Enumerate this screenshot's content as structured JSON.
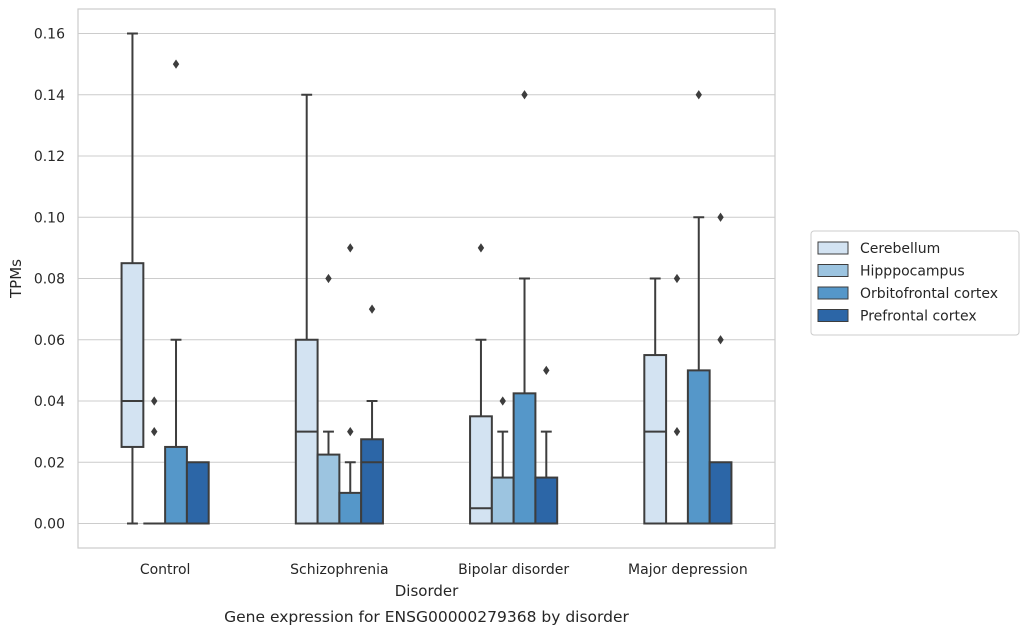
{
  "chart_data": {
    "type": "box",
    "caption": "Gene expression for ENSG00000279368 by disorder",
    "xlabel": "Disorder",
    "ylabel": "TPMs",
    "ylim": [
      -0.008,
      0.168
    ],
    "yticks": [
      "0.00",
      "0.02",
      "0.04",
      "0.06",
      "0.08",
      "0.10",
      "0.12",
      "0.14",
      "0.16"
    ],
    "ytick_values": [
      0,
      0.02,
      0.04,
      0.06,
      0.08,
      0.1,
      0.12,
      0.14,
      0.16
    ],
    "grid": "horizontal",
    "legend_placement": "right",
    "categories": [
      "Control",
      "Schizophrenia",
      "Bipolar disorder",
      "Major depression"
    ],
    "series": [
      {
        "name": "Cerebellum",
        "color": "#d3e3f2",
        "boxes": [
          {
            "whisker_low": 0,
            "q1": 0.025,
            "median": 0.04,
            "q3": 0.085,
            "whisker_high": 0.16,
            "outliers": []
          },
          {
            "whisker_low": 0,
            "q1": 0,
            "median": 0.03,
            "q3": 0.06,
            "whisker_high": 0.14,
            "outliers": []
          },
          {
            "whisker_low": 0,
            "q1": 0,
            "median": 0.005,
            "q3": 0.035,
            "whisker_high": 0.06,
            "outliers": [
              0.09
            ]
          },
          {
            "whisker_low": 0,
            "q1": 0,
            "median": 0.03,
            "q3": 0.055,
            "whisker_high": 0.08,
            "outliers": []
          }
        ]
      },
      {
        "name": "Hipppocampus",
        "color": "#9cc4e0",
        "boxes": [
          {
            "whisker_low": 0,
            "q1": 0,
            "median": 0,
            "q3": 0,
            "whisker_high": 0,
            "outliers": [
              0.03,
              0.04
            ]
          },
          {
            "whisker_low": 0,
            "q1": 0,
            "median": 0,
            "q3": 0.0225,
            "whisker_high": 0.03,
            "outliers": [
              0.08
            ]
          },
          {
            "whisker_low": 0,
            "q1": 0,
            "median": 0,
            "q3": 0.015,
            "whisker_high": 0.03,
            "outliers": [
              0.04
            ]
          },
          {
            "whisker_low": 0,
            "q1": 0,
            "median": 0,
            "q3": 0,
            "whisker_high": 0,
            "outliers": [
              0.03,
              0.08
            ]
          }
        ]
      },
      {
        "name": "Orbitofrontal cortex",
        "color": "#5597c9",
        "boxes": [
          {
            "whisker_low": 0,
            "q1": 0,
            "median": 0,
            "q3": 0.025,
            "whisker_high": 0.06,
            "outliers": [
              0.15
            ]
          },
          {
            "whisker_low": 0,
            "q1": 0,
            "median": 0,
            "q3": 0.01,
            "whisker_high": 0.02,
            "outliers": [
              0.03,
              0.09
            ]
          },
          {
            "whisker_low": 0,
            "q1": 0,
            "median": 0,
            "q3": 0.0425,
            "whisker_high": 0.08,
            "outliers": [
              0.14
            ]
          },
          {
            "whisker_low": 0,
            "q1": 0,
            "median": 0,
            "q3": 0.05,
            "whisker_high": 0.1,
            "outliers": [
              0.14
            ]
          }
        ]
      },
      {
        "name": "Prefrontal cortex",
        "color": "#2c66a7",
        "boxes": [
          {
            "whisker_low": 0,
            "q1": 0,
            "median": 0,
            "q3": 0.02,
            "whisker_high": 0.02,
            "outliers": []
          },
          {
            "whisker_low": 0,
            "q1": 0,
            "median": 0.02,
            "q3": 0.0275,
            "whisker_high": 0.04,
            "outliers": [
              0.07
            ]
          },
          {
            "whisker_low": 0,
            "q1": 0,
            "median": 0,
            "q3": 0.015,
            "whisker_high": 0.03,
            "outliers": [
              0.05
            ]
          },
          {
            "whisker_low": 0,
            "q1": 0,
            "median": 0,
            "q3": 0.02,
            "whisker_high": 0.02,
            "outliers": [
              0.06,
              0.1
            ]
          }
        ]
      }
    ]
  }
}
